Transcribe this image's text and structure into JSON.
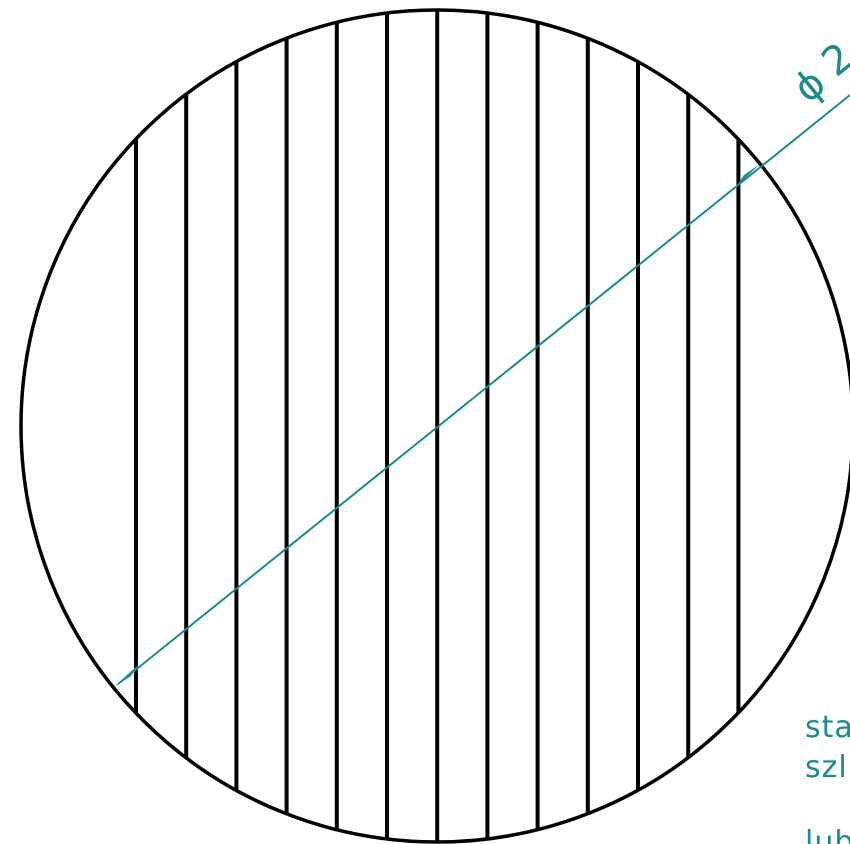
{
  "drawing": {
    "colors": {
      "outline": "#000000",
      "dimension": "#1f8a8a",
      "background": "#ffffff"
    },
    "dimension": {
      "symbol": "ϕ",
      "value_partial": "2"
    },
    "notes": [
      "stal",
      "szli",
      "lub"
    ],
    "slat_count": 13
  }
}
